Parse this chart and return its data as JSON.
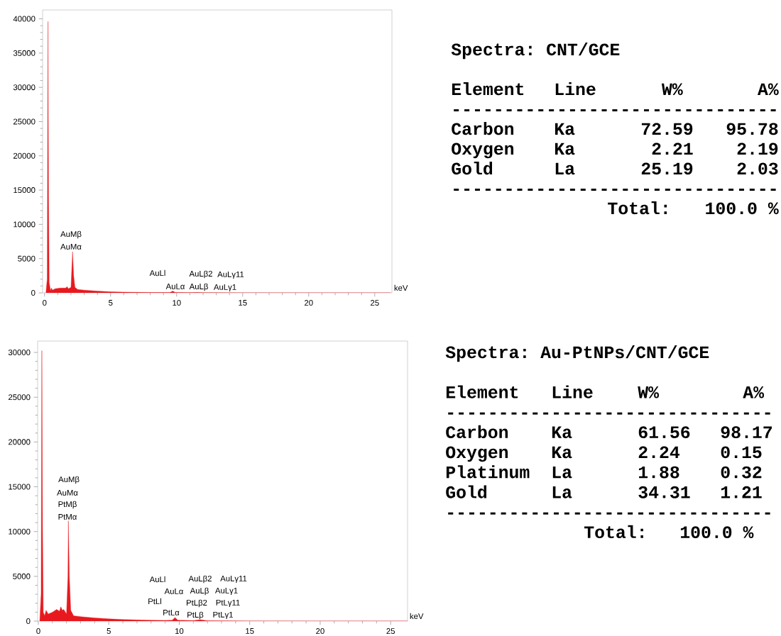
{
  "chart_data": [
    {
      "type": "area",
      "xlabel": "keV",
      "color": "#e8191e",
      "xlim": [
        -0.15,
        26.3
      ],
      "ylim": [
        0,
        41300
      ],
      "xticks": [
        0,
        5,
        10,
        15,
        20,
        25
      ],
      "yticks": [
        0,
        5000,
        10000,
        15000,
        20000,
        25000,
        30000,
        35000,
        40000
      ],
      "x": [
        0.1,
        0.2,
        0.26,
        0.3,
        0.35,
        0.45,
        0.52,
        0.6,
        0.8,
        1.2,
        1.6,
        1.7,
        1.8,
        2.0,
        2.12,
        2.2,
        2.3,
        2.5,
        3,
        4,
        5,
        6,
        7,
        8,
        9,
        9.5,
        9.7,
        9.9,
        11,
        11.5,
        12,
        15,
        20,
        26.2
      ],
      "values": [
        0,
        2000,
        39600,
        14000,
        1500,
        300,
        700,
        400,
        600,
        700,
        700,
        900,
        600,
        800,
        6000,
        2500,
        800,
        500,
        400,
        250,
        150,
        100,
        70,
        50,
        40,
        60,
        250,
        50,
        30,
        60,
        20,
        5,
        0,
        0
      ],
      "annotations": [
        "AuMβ",
        "AuMα",
        "AuLl",
        "AuLα",
        "AuLβ2",
        "AuLβ",
        "AuLγ11",
        "AuLγ1"
      ]
    },
    {
      "type": "other",
      "title": "Spectra: CNT/GCE",
      "annotations": [
        "Element",
        "Line",
        "W%",
        "A%",
        "-------------------------------",
        "Carbon",
        "Ka",
        "72.59",
        "95.78",
        "Oxygen",
        "Ka",
        "2.21",
        "2.19",
        "Gold",
        "La",
        "25.19",
        "2.03",
        "-------------------------------",
        "Total:",
        "100.0 %"
      ]
    },
    {
      "type": "area",
      "xlabel": "keV",
      "color": "#e8191e",
      "xlim": [
        -0.05,
        26.2
      ],
      "ylim": [
        0,
        31270
      ],
      "xticks": [
        0,
        5,
        10,
        15,
        20,
        25
      ],
      "yticks": [
        0,
        5000,
        10000,
        15000,
        20000,
        25000,
        30000
      ],
      "x": [
        0.1,
        0.2,
        0.25,
        0.3,
        0.35,
        0.45,
        0.55,
        0.7,
        1.0,
        1.3,
        1.5,
        1.6,
        1.7,
        1.8,
        2.0,
        2.1,
        2.13,
        2.2,
        2.3,
        2.5,
        3,
        4,
        5,
        6,
        7,
        8,
        9,
        9.5,
        9.7,
        9.9,
        11,
        11.5,
        12,
        15,
        20,
        26.2
      ],
      "values": [
        0,
        3000,
        30200,
        10000,
        1000,
        600,
        1200,
        800,
        1000,
        1300,
        1100,
        1600,
        1200,
        1300,
        800,
        5000,
        11200,
        5000,
        1200,
        600,
        500,
        350,
        250,
        180,
        130,
        100,
        80,
        100,
        400,
        100,
        60,
        150,
        40,
        10,
        0,
        0
      ],
      "annotations": [
        "AuMβ",
        "AuMα",
        "PtMβ",
        "PtMα",
        "AuLl",
        "AuLα",
        "PtLl",
        "PtLα",
        "AuLβ2",
        "AuLβ",
        "PtLβ2",
        "PtLβ",
        "AuLγ11",
        "AuLγ1",
        "PtLγ11",
        "PtLγ1"
      ]
    },
    {
      "type": "other",
      "title": "Spectra: Au-PtNPs/CNT/GCE",
      "annotations": [
        "Element",
        "Line",
        "W%",
        "A%",
        "-------------------------------",
        "Carbon",
        "Ka",
        "61.56",
        "98.17",
        "Oxygen",
        "Ka",
        "2.24",
        "0.15",
        "Platinum",
        "La",
        "1.88",
        "0.32",
        "Gold",
        "La",
        "34.31",
        "1.21",
        "-------------------------------",
        "Total:",
        "100.0 %"
      ]
    }
  ]
}
